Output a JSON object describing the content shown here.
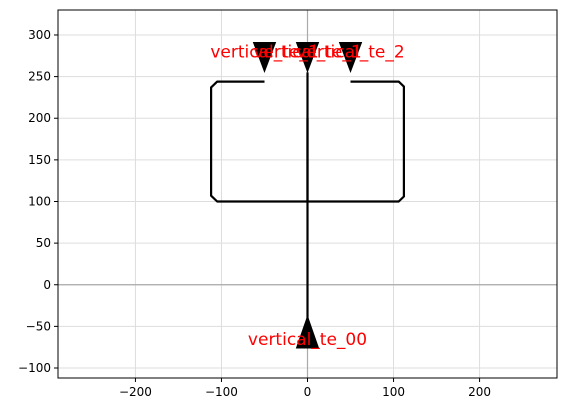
{
  "chart_data": {
    "type": "line",
    "xlim": [
      -290,
      290
    ],
    "ylim": [
      -112,
      330
    ],
    "x_ticks": [
      -200,
      -100,
      0,
      100,
      200
    ],
    "y_ticks": [
      -100,
      -50,
      0,
      50,
      100,
      150,
      200,
      250,
      300
    ],
    "grid": true,
    "axes_zero_lines": true,
    "path_color": "#000000",
    "label_color": "#ff0000",
    "grid_color": "#dddddd",
    "zero_line_color": "#aaaaaa",
    "paths": [
      {
        "name": "route-left",
        "points": [
          [
            -50,
            244
          ],
          [
            -105,
            244
          ],
          [
            -112,
            237
          ],
          [
            -112,
            107
          ],
          [
            -105,
            100
          ],
          [
            -100,
            100
          ],
          [
            100,
            100
          ]
        ]
      },
      {
        "name": "route-right",
        "points": [
          [
            50,
            244
          ],
          [
            106,
            244
          ],
          [
            112,
            238
          ],
          [
            112,
            106
          ],
          [
            106,
            100
          ],
          [
            100,
            100
          ]
        ]
      },
      {
        "name": "route-center-vertical",
        "points": [
          [
            0,
            255
          ],
          [
            0,
            -45
          ]
        ]
      },
      {
        "name": "center-stub",
        "points": [
          [
            0,
            200
          ],
          [
            0,
            100
          ]
        ]
      }
    ],
    "ports": [
      {
        "label": "vertical_te_1",
        "x": -50,
        "y": 280,
        "dir": "down"
      },
      {
        "label": "vertical_te_1",
        "x": 0,
        "y": 280,
        "dir": "down"
      },
      {
        "label": "vertical_te_2",
        "x": 50,
        "y": 280,
        "dir": "down"
      },
      {
        "label": "vertical_te_00",
        "x": 0,
        "y": -65,
        "dir": "up"
      }
    ]
  }
}
